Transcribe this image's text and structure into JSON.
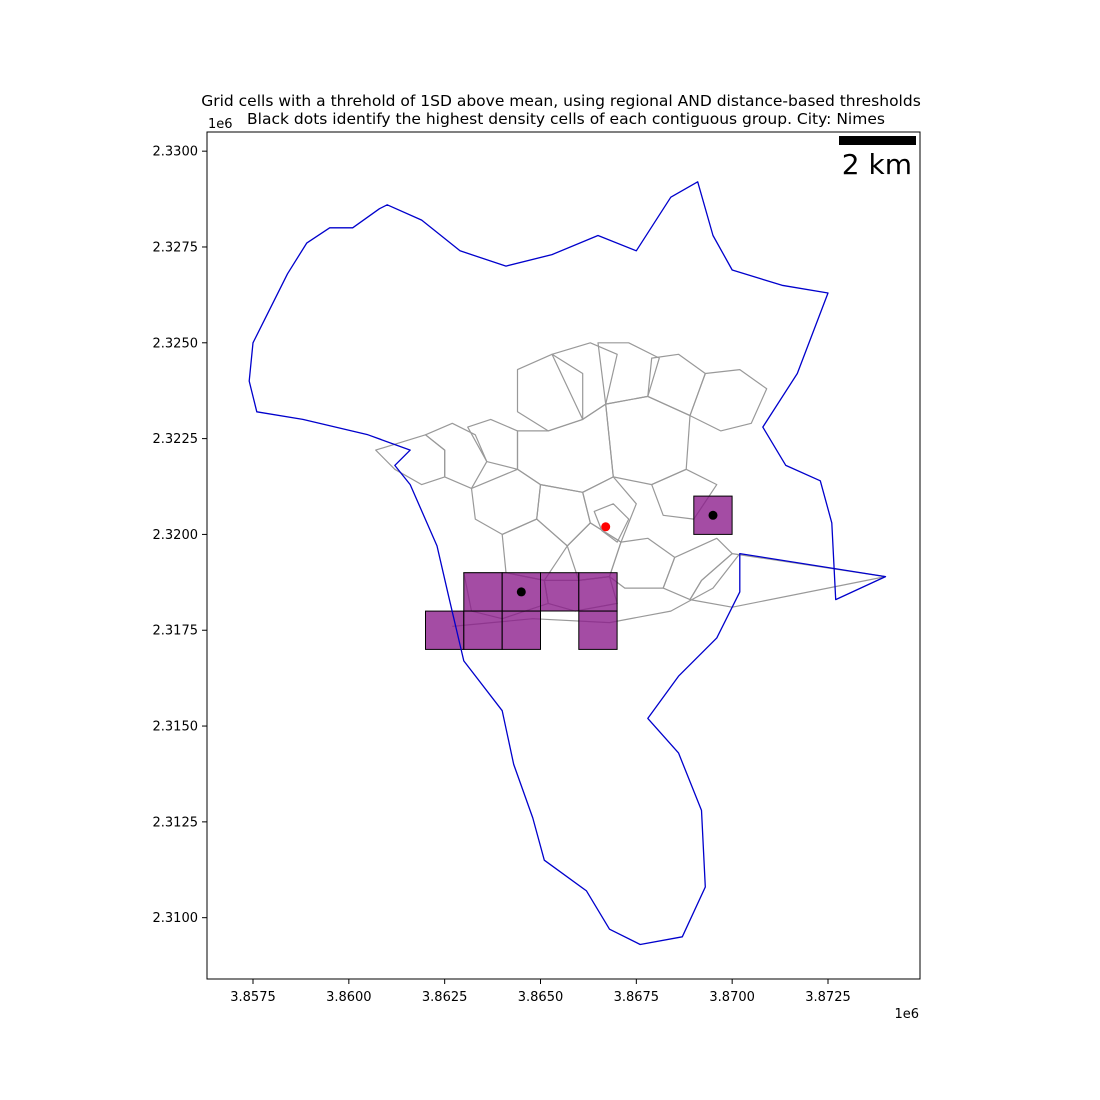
{
  "title_lines": [
    "Grid cells with a threhold of 1SD above mean, using regional AND distance-based thresholds",
    "Black dots identify the highest density cells of each contiguous group. City: Nimes"
  ],
  "x_axis": {
    "ticks": [
      3857500,
      3860000,
      3862500,
      3865000,
      3867500,
      3870000,
      3872500
    ],
    "tick_labels": [
      "3.8575",
      "3.8600",
      "3.8625",
      "3.8650",
      "3.8675",
      "3.8700",
      "3.8725"
    ],
    "offset_label": "1e6",
    "range": [
      3856300,
      3874900
    ]
  },
  "y_axis": {
    "ticks": [
      2310000,
      2312500,
      2315000,
      2317500,
      2320000,
      2322500,
      2325000,
      2327500,
      2330000
    ],
    "tick_labels": [
      "2.3100",
      "2.3125",
      "2.3150",
      "2.3175",
      "2.3200",
      "2.3225",
      "2.3250",
      "2.3275",
      "2.3300"
    ],
    "offset_label": "1e6",
    "range": [
      2308400,
      2330500
    ]
  },
  "scale_bar": {
    "label": "2 km"
  },
  "colors": {
    "boundary": "#0000cc",
    "districts": "#999999",
    "cells_fill": "#8b1a8b",
    "cells_edge": "#000000",
    "peak_marker": "#000000",
    "center_marker": "#ff0000"
  },
  "chart_data": {
    "type": "map",
    "grid_cell_size_m": 1000,
    "highlighted_cells": [
      {
        "x": 3862000,
        "y": 2317000
      },
      {
        "x": 3863000,
        "y": 2317000
      },
      {
        "x": 3864000,
        "y": 2317000
      },
      {
        "x": 3863000,
        "y": 2318000
      },
      {
        "x": 3864000,
        "y": 2318000
      },
      {
        "x": 3865000,
        "y": 2318000
      },
      {
        "x": 3866000,
        "y": 2318000
      },
      {
        "x": 3866000,
        "y": 2317000
      },
      {
        "x": 3869000,
        "y": 2320000
      }
    ],
    "peak_points": [
      {
        "x": 3864500,
        "y": 2318500
      },
      {
        "x": 3869500,
        "y": 2320500
      }
    ],
    "center_point": {
      "x": 3866700,
      "y": 2320200
    },
    "city_boundary": [
      [
        3861000,
        2328600
      ],
      [
        3860800,
        2328500
      ],
      [
        3860100,
        2328000
      ],
      [
        3859500,
        2328000
      ],
      [
        3858900,
        2327600
      ],
      [
        3858400,
        2326800
      ],
      [
        3857800,
        2325600
      ],
      [
        3857500,
        2325000
      ],
      [
        3857400,
        2324000
      ],
      [
        3857600,
        2323200
      ],
      [
        3858800,
        2323000
      ],
      [
        3860500,
        2322600
      ],
      [
        3861600,
        2322200
      ],
      [
        3861200,
        2321800
      ],
      [
        3861600,
        2321300
      ],
      [
        3862300,
        2319700
      ],
      [
        3862600,
        2318400
      ],
      [
        3863000,
        2316700
      ],
      [
        3864000,
        2315400
      ],
      [
        3864300,
        2314000
      ],
      [
        3864800,
        2312600
      ],
      [
        3865100,
        2311500
      ],
      [
        3866200,
        2310700
      ],
      [
        3866800,
        2309700
      ],
      [
        3867600,
        2309300
      ],
      [
        3868700,
        2309500
      ],
      [
        3869300,
        2310800
      ],
      [
        3869200,
        2312800
      ],
      [
        3868600,
        2314300
      ],
      [
        3867800,
        2315200
      ],
      [
        3868600,
        2316300
      ],
      [
        3869600,
        2317300
      ],
      [
        3870200,
        2318500
      ],
      [
        3870200,
        2319500
      ],
      [
        3874000,
        2318900
      ],
      [
        3872700,
        2318300
      ],
      [
        3872600,
        2320300
      ],
      [
        3872300,
        2321400
      ],
      [
        3871400,
        2321800
      ],
      [
        3870800,
        2322800
      ],
      [
        3871700,
        2324200
      ],
      [
        3872500,
        2326300
      ],
      [
        3871300,
        2326500
      ],
      [
        3870000,
        2326900
      ],
      [
        3869500,
        2327800
      ],
      [
        3869100,
        2329200
      ],
      [
        3868400,
        2328800
      ],
      [
        3867500,
        2327400
      ],
      [
        3866500,
        2327800
      ],
      [
        3865300,
        2327300
      ],
      [
        3864100,
        2327000
      ],
      [
        3862900,
        2327400
      ],
      [
        3861900,
        2328200
      ],
      [
        3861000,
        2328600
      ]
    ],
    "districts": [
      [
        [
          3860700,
          2322200
        ],
        [
          3862000,
          2322600
        ],
        [
          3862500,
          2322200
        ],
        [
          3862500,
          2321500
        ],
        [
          3861900,
          2321300
        ],
        [
          3861200,
          2321700
        ],
        [
          3860700,
          2322200
        ]
      ],
      [
        [
          3862000,
          2322600
        ],
        [
          3862700,
          2322900
        ],
        [
          3863300,
          2322600
        ],
        [
          3863600,
          2321900
        ],
        [
          3863200,
          2321200
        ],
        [
          3862500,
          2321500
        ],
        [
          3862500,
          2322200
        ],
        [
          3862000,
          2322600
        ]
      ],
      [
        [
          3863100,
          2322800
        ],
        [
          3863700,
          2323000
        ],
        [
          3864400,
          2322700
        ],
        [
          3864400,
          2321700
        ],
        [
          3863600,
          2321900
        ],
        [
          3863100,
          2322800
        ]
      ],
      [
        [
          3864400,
          2324300
        ],
        [
          3865300,
          2324700
        ],
        [
          3866100,
          2324200
        ],
        [
          3866100,
          2323000
        ],
        [
          3865200,
          2322700
        ],
        [
          3864400,
          2323200
        ],
        [
          3864400,
          2324300
        ]
      ],
      [
        [
          3865300,
          2324700
        ],
        [
          3866300,
          2325000
        ],
        [
          3867000,
          2324700
        ],
        [
          3866700,
          2323400
        ],
        [
          3866100,
          2323000
        ],
        [
          3865300,
          2324700
        ]
      ],
      [
        [
          3866500,
          2325000
        ],
        [
          3867300,
          2325000
        ],
        [
          3868100,
          2324600
        ],
        [
          3867800,
          2323600
        ],
        [
          3866700,
          2323400
        ],
        [
          3866500,
          2325000
        ]
      ],
      [
        [
          3867900,
          2324600
        ],
        [
          3868600,
          2324700
        ],
        [
          3869300,
          2324200
        ],
        [
          3868900,
          2323100
        ],
        [
          3867800,
          2323600
        ],
        [
          3867900,
          2324600
        ]
      ],
      [
        [
          3869300,
          2324200
        ],
        [
          3870200,
          2324300
        ],
        [
          3870900,
          2323800
        ],
        [
          3870500,
          2322900
        ],
        [
          3869700,
          2322700
        ],
        [
          3868900,
          2323100
        ],
        [
          3869300,
          2324200
        ]
      ],
      [
        [
          3866700,
          2323400
        ],
        [
          3867800,
          2323600
        ],
        [
          3868900,
          2323100
        ],
        [
          3868800,
          2321700
        ],
        [
          3867900,
          2321300
        ],
        [
          3866900,
          2321500
        ],
        [
          3866700,
          2323400
        ]
      ],
      [
        [
          3864400,
          2322700
        ],
        [
          3865200,
          2322700
        ],
        [
          3866100,
          2323000
        ],
        [
          3866700,
          2323400
        ],
        [
          3866900,
          2321500
        ],
        [
          3866100,
          2321100
        ],
        [
          3865000,
          2321300
        ],
        [
          3864400,
          2321700
        ],
        [
          3864400,
          2322700
        ]
      ],
      [
        [
          3863200,
          2321200
        ],
        [
          3864400,
          2321700
        ],
        [
          3865000,
          2321300
        ],
        [
          3864900,
          2320400
        ],
        [
          3864000,
          2320000
        ],
        [
          3863300,
          2320400
        ],
        [
          3863200,
          2321200
        ]
      ],
      [
        [
          3865000,
          2321300
        ],
        [
          3866100,
          2321100
        ],
        [
          3866300,
          2320300
        ],
        [
          3865700,
          2319700
        ],
        [
          3864900,
          2320400
        ],
        [
          3865000,
          2321300
        ]
      ],
      [
        [
          3866100,
          2321100
        ],
        [
          3866900,
          2321500
        ],
        [
          3867500,
          2320800
        ],
        [
          3867100,
          2319800
        ],
        [
          3866300,
          2320300
        ],
        [
          3866100,
          2321100
        ]
      ],
      [
        [
          3866400,
          2320600
        ],
        [
          3866900,
          2320800
        ],
        [
          3867300,
          2320400
        ],
        [
          3867000,
          2319800
        ],
        [
          3866600,
          2320100
        ],
        [
          3866400,
          2320600
        ]
      ],
      [
        [
          3867900,
          2321300
        ],
        [
          3868800,
          2321700
        ],
        [
          3869600,
          2321300
        ],
        [
          3869000,
          2320400
        ],
        [
          3868200,
          2320500
        ],
        [
          3867900,
          2321300
        ]
      ],
      [
        [
          3864000,
          2320000
        ],
        [
          3864900,
          2320400
        ],
        [
          3865700,
          2319700
        ],
        [
          3865100,
          2318800
        ],
        [
          3864100,
          2319000
        ],
        [
          3864000,
          2320000
        ]
      ],
      [
        [
          3865700,
          2319700
        ],
        [
          3866300,
          2320300
        ],
        [
          3867100,
          2319800
        ],
        [
          3866800,
          2318900
        ],
        [
          3866000,
          2318800
        ],
        [
          3865700,
          2319700
        ]
      ],
      [
        [
          3867100,
          2319800
        ],
        [
          3867800,
          2319900
        ],
        [
          3868500,
          2319400
        ],
        [
          3868200,
          2318600
        ],
        [
          3867200,
          2318600
        ],
        [
          3866800,
          2318900
        ],
        [
          3867100,
          2319800
        ]
      ],
      [
        [
          3868500,
          2319400
        ],
        [
          3869600,
          2319900
        ],
        [
          3870000,
          2319500
        ],
        [
          3869200,
          2318800
        ],
        [
          3868900,
          2318300
        ],
        [
          3868200,
          2318600
        ],
        [
          3868500,
          2319400
        ]
      ],
      [
        [
          3863000,
          2319000
        ],
        [
          3864100,
          2319000
        ],
        [
          3865100,
          2318800
        ],
        [
          3865200,
          2318200
        ],
        [
          3864000,
          2317800
        ],
        [
          3863200,
          2318000
        ],
        [
          3863000,
          2319000
        ]
      ],
      [
        [
          3865100,
          2318800
        ],
        [
          3866000,
          2318800
        ],
        [
          3866800,
          2318900
        ],
        [
          3867000,
          2318200
        ],
        [
          3865900,
          2318000
        ],
        [
          3865200,
          2318200
        ],
        [
          3865100,
          2318800
        ]
      ],
      [
        [
          3868900,
          2318300
        ],
        [
          3869200,
          2318800
        ],
        [
          3870000,
          2319500
        ],
        [
          3874000,
          2318900
        ],
        [
          3870000,
          2318100
        ],
        [
          3868900,
          2318300
        ]
      ],
      [
        [
          3862700,
          2317600
        ],
        [
          3864800,
          2317800
        ],
        [
          3866800,
          2317700
        ],
        [
          3868400,
          2318000
        ],
        [
          3869500,
          2318600
        ],
        [
          3870200,
          2319500
        ]
      ]
    ]
  }
}
